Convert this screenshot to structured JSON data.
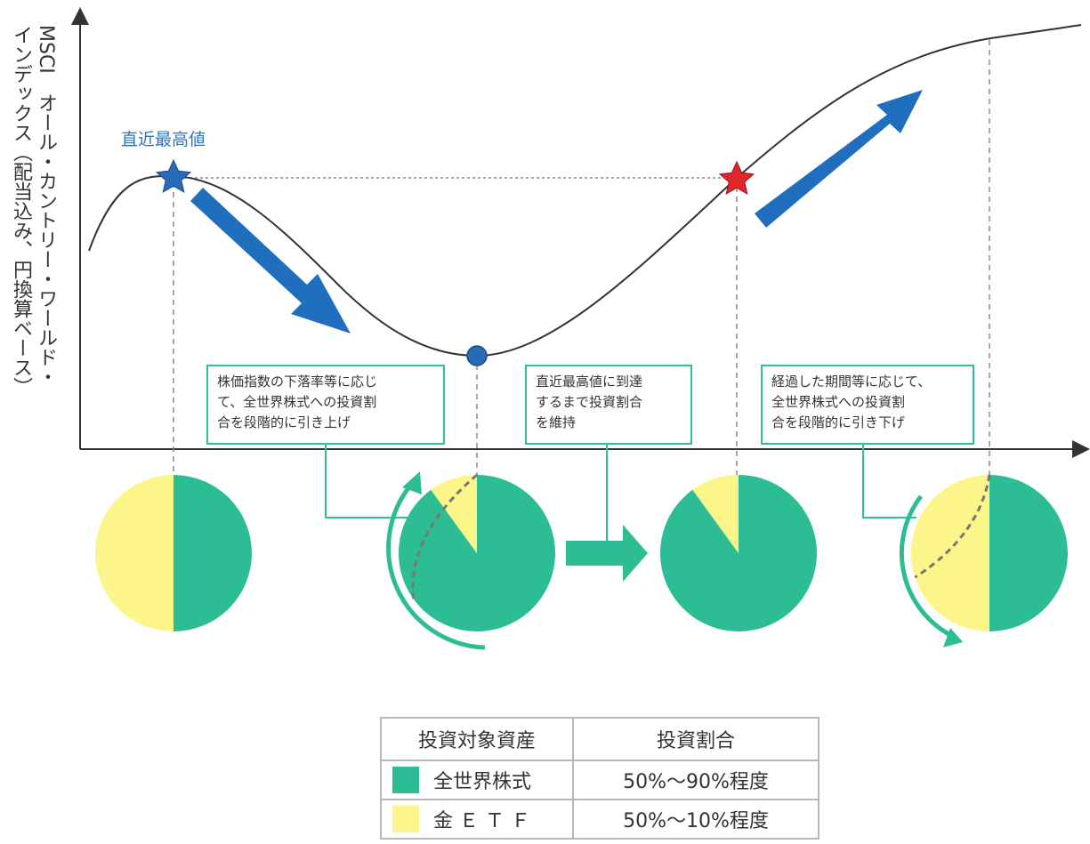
{
  "y_axis_label": {
    "line1": "MSCI　オール・カントリー・ワールド・",
    "line2": "インデックス（配当込み、円換算ベース）"
  },
  "peak_label": "直近最高値",
  "callouts": [
    "株価指数の下落率等に応じ\nて、全世界株式への投資割\n合を段階的に引き上げ",
    "直近最高値に到達\nするまで投資割合\nを維持",
    "経過した期間等に応じて、\n全世界株式への投資割\n合を段階的に引き下げ"
  ],
  "pies": [
    {
      "equity_fraction": 0.5
    },
    {
      "equity_fraction": 0.9,
      "dashed_previous_equity_fraction": 0.65
    },
    {
      "equity_fraction": 0.9
    },
    {
      "equity_fraction": 0.5,
      "dashed_previous_equity_fraction": 0.7
    }
  ],
  "colors": {
    "equity": "#2dbd95",
    "gold": "#fbf58a",
    "arrow": "#1f6fbe",
    "peak_star": "#2a6bb8",
    "recover_star": "#e0252b",
    "trough_dot": "#2a6bb8",
    "callout_border": "#2fbf95"
  },
  "legend": {
    "headers": [
      "投資対象資産",
      "投資割合"
    ],
    "rows": [
      {
        "asset": "全世界株式",
        "ratio": "50%～90%程度",
        "color": "#2dbd95"
      },
      {
        "asset": "金 Ｅ Ｔ Ｆ",
        "ratio": "50%～10%程度",
        "color": "#fbf58a"
      }
    ]
  }
}
